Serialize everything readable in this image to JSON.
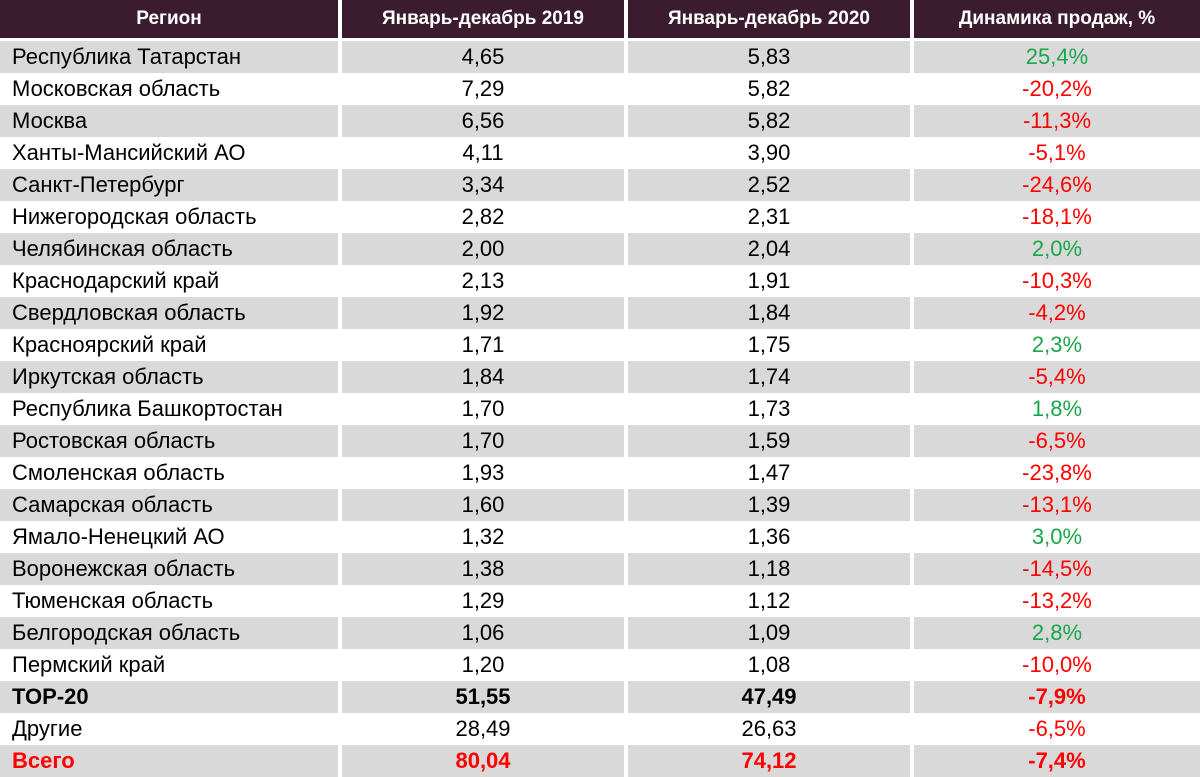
{
  "header": {
    "region": "Регион",
    "y2019": "Январь-декабрь 2019",
    "y2020": "Январь-декабрь 2020",
    "dynamics": "Динамика продаж, %"
  },
  "rows": [
    {
      "region": "Республика Татарстан",
      "y2019": "4,65",
      "y2020": "5,83",
      "dynamics": "25,4%",
      "trend": "pos"
    },
    {
      "region": "Московская область",
      "y2019": "7,29",
      "y2020": "5,82",
      "dynamics": "-20,2%",
      "trend": "neg"
    },
    {
      "region": "Москва",
      "y2019": "6,56",
      "y2020": "5,82",
      "dynamics": "-11,3%",
      "trend": "neg"
    },
    {
      "region": "Ханты-Мансийский АО",
      "y2019": "4,11",
      "y2020": "3,90",
      "dynamics": "-5,1%",
      "trend": "neg"
    },
    {
      "region": "Санкт-Петербург",
      "y2019": "3,34",
      "y2020": "2,52",
      "dynamics": "-24,6%",
      "trend": "neg"
    },
    {
      "region": "Нижегородская область",
      "y2019": "2,82",
      "y2020": "2,31",
      "dynamics": "-18,1%",
      "trend": "neg"
    },
    {
      "region": "Челябинская область",
      "y2019": "2,00",
      "y2020": "2,04",
      "dynamics": "2,0%",
      "trend": "pos"
    },
    {
      "region": "Краснодарский край",
      "y2019": "2,13",
      "y2020": "1,91",
      "dynamics": "-10,3%",
      "trend": "neg"
    },
    {
      "region": "Свердловская область",
      "y2019": "1,92",
      "y2020": "1,84",
      "dynamics": "-4,2%",
      "trend": "neg"
    },
    {
      "region": "Красноярский край",
      "y2019": "1,71",
      "y2020": "1,75",
      "dynamics": "2,3%",
      "trend": "pos"
    },
    {
      "region": "Иркутская область",
      "y2019": "1,84",
      "y2020": "1,74",
      "dynamics": "-5,4%",
      "trend": "neg"
    },
    {
      "region": "Республика Башкортостан",
      "y2019": "1,70",
      "y2020": "1,73",
      "dynamics": "1,8%",
      "trend": "pos"
    },
    {
      "region": "Ростовская область",
      "y2019": "1,70",
      "y2020": "1,59",
      "dynamics": "-6,5%",
      "trend": "neg"
    },
    {
      "region": "Смоленская область",
      "y2019": "1,93",
      "y2020": "1,47",
      "dynamics": "-23,8%",
      "trend": "neg"
    },
    {
      "region": "Самарская область",
      "y2019": "1,60",
      "y2020": "1,39",
      "dynamics": "-13,1%",
      "trend": "neg"
    },
    {
      "region": "Ямало-Ненецкий АО",
      "y2019": "1,32",
      "y2020": "1,36",
      "dynamics": "3,0%",
      "trend": "pos"
    },
    {
      "region": "Воронежская область",
      "y2019": "1,38",
      "y2020": "1,18",
      "dynamics": "-14,5%",
      "trend": "neg"
    },
    {
      "region": "Тюменская область",
      "y2019": "1,29",
      "y2020": "1,12",
      "dynamics": "-13,2%",
      "trend": "neg"
    },
    {
      "region": "Белгородская область",
      "y2019": "1,06",
      "y2020": "1,09",
      "dynamics": "2,8%",
      "trend": "pos"
    },
    {
      "region": "Пермский край",
      "y2019": "1,20",
      "y2020": "1,08",
      "dynamics": "-10,0%",
      "trend": "neg"
    }
  ],
  "top20": {
    "region": "TOP-20",
    "y2019": "51,55",
    "y2020": "47,49",
    "dynamics": "-7,9%"
  },
  "other": {
    "region": "Другие",
    "y2019": "28,49",
    "y2020": "26,63",
    "dynamics": "-6,5%"
  },
  "total": {
    "region": "Всего",
    "y2019": "80,04",
    "y2020": "74,12",
    "dynamics": "-7,4%"
  },
  "colors": {
    "header_bg": "#3b1c2e",
    "stripe": "#d9d9d9",
    "positive": "#1aa64a",
    "negative": "#ff0000"
  }
}
